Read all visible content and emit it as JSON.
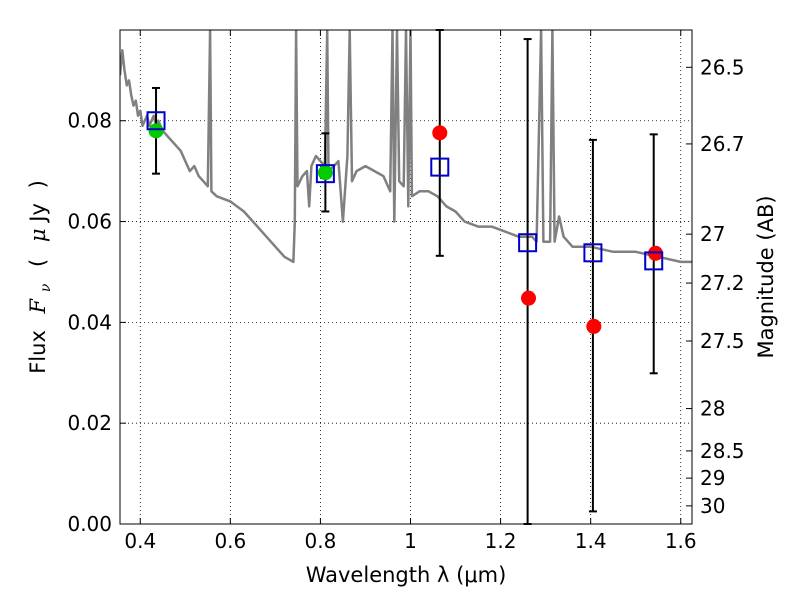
{
  "chart_data": {
    "type": "scatter",
    "xlabel": "Wavelength  λ (μm)",
    "ylabel_parts": [
      "Flux",
      "F",
      "ν",
      "(",
      "μ",
      "Jy",
      ")"
    ],
    "y2label": "Magnitude (AB)",
    "xlim": [
      0.355,
      1.625
    ],
    "ylim": [
      0.0,
      0.098
    ],
    "grid": true,
    "x_ticks": [
      0.4,
      0.6,
      0.8,
      1.0,
      1.2,
      1.4,
      1.6
    ],
    "x_tick_labels": [
      "0.4",
      "0.6",
      "0.8",
      "1",
      "1.2",
      "1.4",
      "1.6"
    ],
    "y_ticks": [
      0.0,
      0.02,
      0.04,
      0.06,
      0.08
    ],
    "y_tick_labels": [
      "0.00",
      "0.02",
      "0.04",
      "0.06",
      "0.08"
    ],
    "y2_ticks": [
      {
        "label": "26.5",
        "flux": 0.0906
      },
      {
        "label": "26.7",
        "flux": 0.0754
      },
      {
        "label": "27",
        "flux": 0.0575
      },
      {
        "label": "27.2",
        "flux": 0.0478
      },
      {
        "label": "27.5",
        "flux": 0.0363
      },
      {
        "label": "28",
        "flux": 0.0229
      },
      {
        "label": "28.5",
        "flux": 0.0145
      },
      {
        "label": "29",
        "flux": 0.0091
      },
      {
        "label": "30",
        "flux": 0.0036
      }
    ],
    "colors": {
      "model": "#808080",
      "observed": "#0000cc",
      "error_bar": "#000000",
      "red_points": "#ff0000",
      "green_points": "#00cc00"
    },
    "series": [
      {
        "kind": "line",
        "points": [
          [
            0.355,
            0.089
          ],
          [
            0.36,
            0.094
          ],
          [
            0.365,
            0.09
          ],
          [
            0.37,
            0.087
          ],
          [
            0.375,
            0.088
          ],
          [
            0.38,
            0.085
          ],
          [
            0.385,
            0.083
          ],
          [
            0.39,
            0.084
          ],
          [
            0.395,
            0.081
          ],
          [
            0.4,
            0.082
          ],
          [
            0.405,
            0.079
          ],
          [
            0.41,
            0.08
          ],
          [
            0.415,
            0.081
          ],
          [
            0.42,
            0.079
          ],
          [
            0.425,
            0.08
          ],
          [
            0.43,
            0.081
          ],
          [
            0.435,
            0.079
          ],
          [
            0.44,
            0.08
          ],
          [
            0.445,
            0.079
          ],
          [
            0.45,
            0.078
          ],
          [
            0.46,
            0.077
          ],
          [
            0.47,
            0.076
          ],
          [
            0.48,
            0.075
          ],
          [
            0.49,
            0.074
          ],
          [
            0.5,
            0.072
          ],
          [
            0.51,
            0.07
          ],
          [
            0.52,
            0.071
          ],
          [
            0.53,
            0.069
          ],
          [
            0.54,
            0.068
          ],
          [
            0.55,
            0.067
          ],
          [
            0.555,
            0.098
          ],
          [
            0.558,
            0.066
          ],
          [
            0.57,
            0.065
          ],
          [
            0.6,
            0.064
          ],
          [
            0.63,
            0.062
          ],
          [
            0.66,
            0.059
          ],
          [
            0.69,
            0.056
          ],
          [
            0.72,
            0.053
          ],
          [
            0.74,
            0.052
          ],
          [
            0.743,
            0.06
          ],
          [
            0.746,
            0.098
          ],
          [
            0.749,
            0.067
          ],
          [
            0.76,
            0.069
          ],
          [
            0.77,
            0.07
          ],
          [
            0.775,
            0.063
          ],
          [
            0.78,
            0.071
          ],
          [
            0.79,
            0.073
          ],
          [
            0.8,
            0.072
          ],
          [
            0.81,
            0.071
          ],
          [
            0.815,
            0.098
          ],
          [
            0.818,
            0.07
          ],
          [
            0.83,
            0.071
          ],
          [
            0.84,
            0.072
          ],
          [
            0.85,
            0.06
          ],
          [
            0.86,
            0.073
          ],
          [
            0.865,
            0.098
          ],
          [
            0.87,
            0.068
          ],
          [
            0.88,
            0.07
          ],
          [
            0.9,
            0.071
          ],
          [
            0.92,
            0.07
          ],
          [
            0.94,
            0.069
          ],
          [
            0.955,
            0.066
          ],
          [
            0.96,
            0.098
          ],
          [
            0.964,
            0.06
          ],
          [
            0.97,
            0.098
          ],
          [
            0.975,
            0.068
          ],
          [
            0.985,
            0.067
          ],
          [
            0.99,
            0.098
          ],
          [
            0.995,
            0.063
          ],
          [
            1.0,
            0.098
          ],
          [
            1.003,
            0.065
          ],
          [
            1.02,
            0.066
          ],
          [
            1.04,
            0.066
          ],
          [
            1.06,
            0.065
          ],
          [
            1.08,
            0.063
          ],
          [
            1.1,
            0.062
          ],
          [
            1.12,
            0.06
          ],
          [
            1.15,
            0.059
          ],
          [
            1.18,
            0.059
          ],
          [
            1.21,
            0.058
          ],
          [
            1.24,
            0.057
          ],
          [
            1.27,
            0.057
          ],
          [
            1.28,
            0.056
          ],
          [
            1.29,
            0.098
          ],
          [
            1.295,
            0.056
          ],
          [
            1.31,
            0.056
          ],
          [
            1.315,
            0.098
          ],
          [
            1.32,
            0.056
          ],
          [
            1.33,
            0.061
          ],
          [
            1.34,
            0.057
          ],
          [
            1.36,
            0.055
          ],
          [
            1.4,
            0.055
          ],
          [
            1.45,
            0.054
          ],
          [
            1.5,
            0.054
          ],
          [
            1.55,
            0.053
          ],
          [
            1.6,
            0.052
          ],
          [
            1.625,
            0.052
          ]
        ]
      },
      {
        "kind": "open-square",
        "points": [
          {
            "x": 0.435,
            "y": 0.08,
            "ylo": 0.0695,
            "yhi": 0.0865
          },
          {
            "x": 0.811,
            "y": 0.0695,
            "ylo": 0.062,
            "yhi": 0.0775
          },
          {
            "x": 1.065,
            "y": 0.0708,
            "ylo": 0.0532,
            "yhi": 0.098
          },
          {
            "x": 1.26,
            "y": 0.0558,
            "ylo": 0.0,
            "yhi": 0.0962
          },
          {
            "x": 1.405,
            "y": 0.0538,
            "ylo": 0.0025,
            "yhi": 0.0762
          },
          {
            "x": 1.54,
            "y": 0.0522,
            "ylo": 0.0299,
            "yhi": 0.0773
          }
        ]
      },
      {
        "kind": "filled-circle",
        "color": "red",
        "points": [
          {
            "x": 1.065,
            "y": 0.0776
          },
          {
            "x": 1.262,
            "y": 0.0448
          },
          {
            "x": 1.407,
            "y": 0.0392
          },
          {
            "x": 1.544,
            "y": 0.0537
          }
        ]
      },
      {
        "kind": "filled-circle",
        "color": "green",
        "points": [
          {
            "x": 0.435,
            "y": 0.078
          },
          {
            "x": 0.811,
            "y": 0.0697
          }
        ]
      }
    ]
  }
}
